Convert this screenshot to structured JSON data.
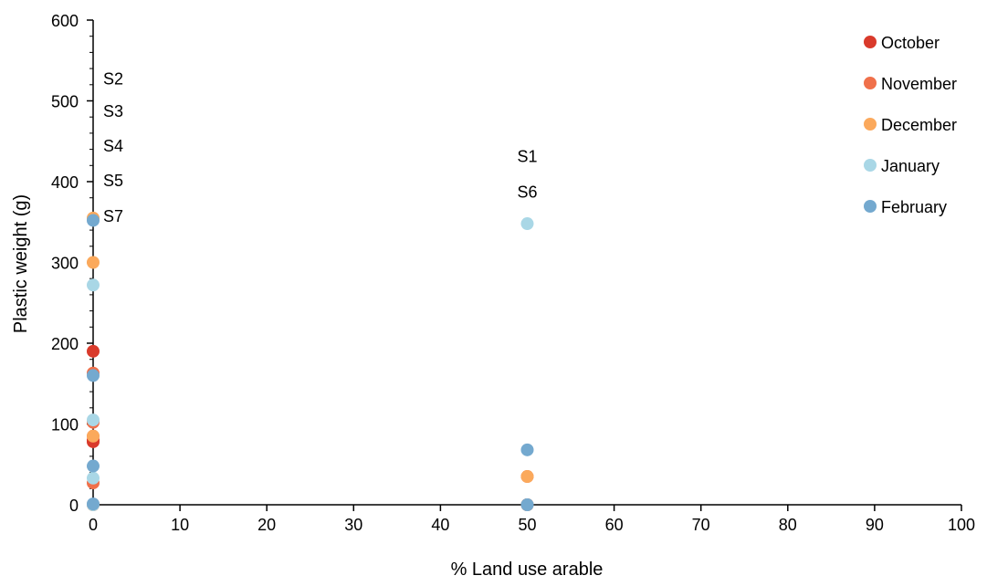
{
  "chart_data": {
    "type": "scatter",
    "title": "",
    "xlabel": "% Land use arable",
    "ylabel": "Plastic weight (g)",
    "xlim": [
      0,
      100
    ],
    "ylim": [
      0,
      600
    ],
    "x_ticks": [
      0,
      10,
      20,
      30,
      40,
      50,
      60,
      70,
      80,
      90,
      100
    ],
    "y_ticks": [
      0,
      100,
      200,
      300,
      400,
      500,
      600
    ],
    "grid": false,
    "legend_position": "right",
    "series": [
      {
        "name": "October",
        "color": "#d93a2b",
        "points": [
          [
            0,
            190
          ],
          [
            0,
            80
          ],
          [
            0,
            78
          ],
          [
            0,
            0
          ],
          [
            50,
            0
          ],
          [
            50,
            0
          ]
        ]
      },
      {
        "name": "November",
        "color": "#f0704a",
        "points": [
          [
            0,
            163
          ],
          [
            0,
            102
          ],
          [
            0,
            85
          ],
          [
            0,
            27
          ],
          [
            50,
            35
          ],
          [
            50,
            0
          ]
        ]
      },
      {
        "name": "December",
        "color": "#fba95c",
        "points": [
          [
            0,
            355
          ],
          [
            0,
            300
          ],
          [
            0,
            85
          ],
          [
            0,
            0
          ],
          [
            50,
            35
          ],
          [
            50,
            0
          ]
        ]
      },
      {
        "name": "January",
        "color": "#a9d7e6",
        "points": [
          [
            0,
            272
          ],
          [
            0,
            105
          ],
          [
            0,
            33
          ],
          [
            0,
            0
          ],
          [
            50,
            348
          ],
          [
            50,
            0
          ]
        ]
      },
      {
        "name": "February",
        "color": "#74a9cf",
        "points": [
          [
            0,
            352
          ],
          [
            0,
            160
          ],
          [
            0,
            48
          ],
          [
            0,
            1
          ],
          [
            50,
            68
          ],
          [
            50,
            0
          ]
        ]
      }
    ],
    "annotations": [
      {
        "text": "S2",
        "x": 0,
        "y": 528
      },
      {
        "text": "S3",
        "x": 0,
        "y": 488
      },
      {
        "text": "S4",
        "x": 0,
        "y": 445
      },
      {
        "text": "S5",
        "x": 0,
        "y": 402
      },
      {
        "text": "S7",
        "x": 0,
        "y": 358
      },
      {
        "text": "S1",
        "x": 50,
        "y": 432
      },
      {
        "text": "S6",
        "x": 50,
        "y": 388
      }
    ]
  }
}
